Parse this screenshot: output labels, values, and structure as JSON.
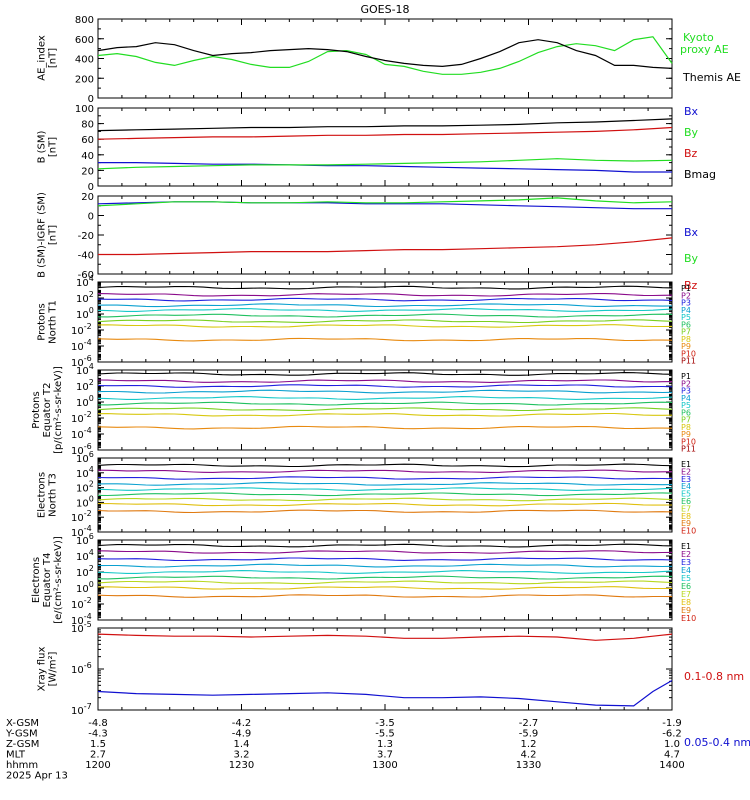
{
  "title": "GOES-18",
  "colors": {
    "axis": "#000000",
    "black": "#000000",
    "green": "#22dd22",
    "blue": "#1010d0",
    "red": "#d01010",
    "p_colors": [
      "#000000",
      "#8a0a8a",
      "#2020e0",
      "#0aa0d0",
      "#16c8c8",
      "#20c060",
      "#7ad020",
      "#d8c810",
      "#e88a10",
      "#d02010",
      "#a00000"
    ],
    "e_colors": [
      "#000000",
      "#8a0a8a",
      "#2020e0",
      "#0aa0d0",
      "#16c8c8",
      "#20c060",
      "#b8d820",
      "#e0c010",
      "#e07a10",
      "#d02010"
    ]
  },
  "x_axis": {
    "rows": [
      {
        "label": "X-GSM",
        "values": [
          "-4.8",
          "-4.2",
          "-3.5",
          "-2.7",
          "-1.9"
        ]
      },
      {
        "label": "Y-GSM",
        "values": [
          "-4.3",
          "-4.9",
          "-5.5",
          "-5.9",
          "-6.2"
        ]
      },
      {
        "label": "Z-GSM",
        "values": [
          "1.5",
          "1.4",
          "1.3",
          "1.2",
          "1.0"
        ]
      },
      {
        "label": "MLT",
        "values": [
          "2.7",
          "3.2",
          "3.7",
          "4.2",
          "4.7"
        ]
      },
      {
        "label": "hhmm",
        "values": [
          "1200",
          "1230",
          "1300",
          "1330",
          "1400"
        ]
      }
    ],
    "date": "2025 Apr 13"
  },
  "chart_data": [
    {
      "type": "line",
      "ylabel": "AE_index [nT]",
      "ylim": [
        0,
        800
      ],
      "yticks": [
        "0",
        "200",
        "400",
        "600",
        "800"
      ],
      "x": [
        0,
        4,
        8,
        12,
        16,
        20,
        24,
        28,
        32,
        36,
        40,
        44,
        48,
        52,
        56,
        60,
        64,
        68,
        72,
        76,
        80,
        84,
        88,
        92,
        96,
        100,
        104,
        108,
        112,
        116,
        120
      ],
      "series": [
        {
          "name": "Kyoto proxy AE",
          "color": "#22dd22",
          "values": [
            430,
            450,
            420,
            360,
            330,
            380,
            420,
            390,
            340,
            310,
            310,
            370,
            470,
            480,
            440,
            340,
            320,
            270,
            240,
            240,
            260,
            300,
            370,
            460,
            520,
            550,
            530,
            480,
            590,
            620,
            350
          ]
        },
        {
          "name": "Themis AE",
          "color": "#000000",
          "values": [
            480,
            510,
            520,
            560,
            540,
            480,
            430,
            450,
            460,
            480,
            490,
            500,
            490,
            470,
            420,
            380,
            350,
            330,
            320,
            340,
            400,
            470,
            560,
            590,
            560,
            480,
            430,
            330,
            330,
            310,
            300
          ]
        }
      ]
    },
    {
      "type": "line",
      "ylabel": "B (SM) [nT]",
      "ylim": [
        0,
        100
      ],
      "yticks": [
        "0",
        "20",
        "40",
        "60",
        "80",
        "100"
      ],
      "x": [
        0,
        8,
        16,
        24,
        32,
        40,
        48,
        56,
        64,
        72,
        80,
        88,
        96,
        104,
        112,
        120
      ],
      "series": [
        {
          "name": "Bx",
          "color": "#1010d0",
          "values": [
            30,
            30,
            29,
            28,
            28,
            27,
            26,
            26,
            25,
            24,
            23,
            22,
            21,
            20,
            18,
            18
          ]
        },
        {
          "name": "By",
          "color": "#22dd22",
          "values": [
            22,
            24,
            25,
            26,
            27,
            27,
            27,
            28,
            29,
            30,
            31,
            33,
            35,
            33,
            32,
            33
          ]
        },
        {
          "name": "Bz",
          "color": "#d01010",
          "values": [
            60,
            61,
            62,
            63,
            63,
            64,
            65,
            65,
            66,
            66,
            67,
            68,
            69,
            70,
            72,
            75
          ]
        },
        {
          "name": "Bmag",
          "color": "#000000",
          "values": [
            71,
            72,
            73,
            74,
            75,
            75,
            76,
            76,
            77,
            77,
            78,
            79,
            81,
            82,
            84,
            86
          ]
        }
      ]
    },
    {
      "type": "line",
      "ylabel": "B (SM)-IGRF (SM) [nT]",
      "ylim": [
        -60,
        20
      ],
      "yticks": [
        "-60",
        "-40",
        "-20",
        "0",
        "20"
      ],
      "x": [
        0,
        8,
        16,
        24,
        32,
        40,
        48,
        56,
        64,
        72,
        80,
        88,
        96,
        104,
        112,
        120
      ],
      "series": [
        {
          "name": "Bx",
          "color": "#1010d0",
          "values": [
            12,
            13,
            14,
            14,
            13,
            13,
            13,
            12,
            12,
            12,
            11,
            10,
            9,
            8,
            7,
            7
          ]
        },
        {
          "name": "By",
          "color": "#22dd22",
          "values": [
            10,
            12,
            14,
            14,
            13,
            13,
            14,
            13,
            13,
            14,
            15,
            16,
            18,
            15,
            13,
            14
          ]
        },
        {
          "name": "Bz",
          "color": "#d01010",
          "values": [
            -40,
            -40,
            -39,
            -38,
            -37,
            -37,
            -37,
            -36,
            -35,
            -35,
            -34,
            -33,
            -32,
            -30,
            -27,
            -23
          ]
        }
      ]
    },
    {
      "type": "line",
      "log": true,
      "ylabel": "Protons North T1",
      "ylim_exp": [
        -6,
        4
      ],
      "ytick_exps": [
        -6,
        -4,
        -2,
        0,
        2,
        4
      ],
      "channels": [
        "P1",
        "P2",
        "P3",
        "P4",
        "P5",
        "P6",
        "P7",
        "P8",
        "P9",
        "P10",
        "P11"
      ],
      "levels_log10": [
        3.3,
        2.4,
        1.8,
        1.1,
        0.5,
        -0.2,
        -0.9,
        -1.5,
        -3.2,
        null,
        null
      ]
    },
    {
      "type": "line",
      "log": true,
      "ylabel": "Protons Equator T2 [p/(cm²-s-sr-keV)]",
      "ylim_exp": [
        -6,
        4
      ],
      "ytick_exps": [
        -6,
        -4,
        -2,
        0,
        2,
        4
      ],
      "channels": [
        "P1",
        "P2",
        "P3",
        "P4",
        "P5",
        "P6",
        "P7",
        "P8",
        "P9",
        "P10",
        "P11"
      ],
      "levels_log10": [
        3.5,
        2.6,
        2.0,
        1.3,
        0.5,
        -0.2,
        -0.9,
        -1.6,
        -3.2,
        null,
        null
      ]
    },
    {
      "type": "line",
      "log": true,
      "ylabel": "Electrons North T3",
      "ylim_exp": [
        -4,
        6
      ],
      "ytick_exps": [
        -4,
        -2,
        0,
        2,
        4,
        6
      ],
      "channels": [
        "E1",
        "E2",
        "E3",
        "E4",
        "E5",
        "E6",
        "E7",
        "E8",
        "E9",
        "E10"
      ],
      "levels_log10": [
        5.0,
        4.2,
        3.3,
        2.5,
        1.8,
        1.1,
        0.4,
        -0.3,
        -1.2,
        null
      ]
    },
    {
      "type": "line",
      "log": true,
      "ylabel": "Electrons Equator T4 [e/(cm²-s-sr-keV)]",
      "ylim_exp": [
        -4,
        6
      ],
      "ytick_exps": [
        -4,
        -2,
        0,
        2,
        4,
        6
      ],
      "channels": [
        "E1",
        "E2",
        "E3",
        "E4",
        "E5",
        "E6",
        "E7",
        "E8",
        "E9",
        "E10"
      ],
      "levels_log10": [
        5.3,
        4.5,
        3.6,
        2.8,
        2.0,
        1.3,
        0.7,
        0.0,
        -1.0,
        null
      ]
    },
    {
      "type": "line",
      "log": true,
      "ylabel": "Xray flux [W/m²]",
      "ylim_exp": [
        -7,
        -5
      ],
      "ytick_exps": [
        -7,
        -6,
        -5
      ],
      "x": [
        0,
        8,
        16,
        24,
        32,
        40,
        48,
        56,
        64,
        72,
        80,
        88,
        96,
        104,
        112,
        116,
        120
      ],
      "series": [
        {
          "name": "0.1-0.8 nm",
          "color": "#d01010",
          "log10_values": [
            -5.15,
            -5.18,
            -5.2,
            -5.2,
            -5.22,
            -5.2,
            -5.18,
            -5.2,
            -5.25,
            -5.25,
            -5.22,
            -5.2,
            -5.22,
            -5.3,
            -5.25,
            -5.2,
            -5.15
          ]
        },
        {
          "name": "0.05-0.4 nm",
          "color": "#1010d0",
          "log10_values": [
            -6.55,
            -6.6,
            -6.62,
            -6.64,
            -6.62,
            -6.6,
            -6.58,
            -6.62,
            -6.7,
            -6.7,
            -6.68,
            -6.72,
            -6.8,
            -6.88,
            -6.9,
            -6.55,
            -6.28
          ]
        }
      ]
    }
  ]
}
